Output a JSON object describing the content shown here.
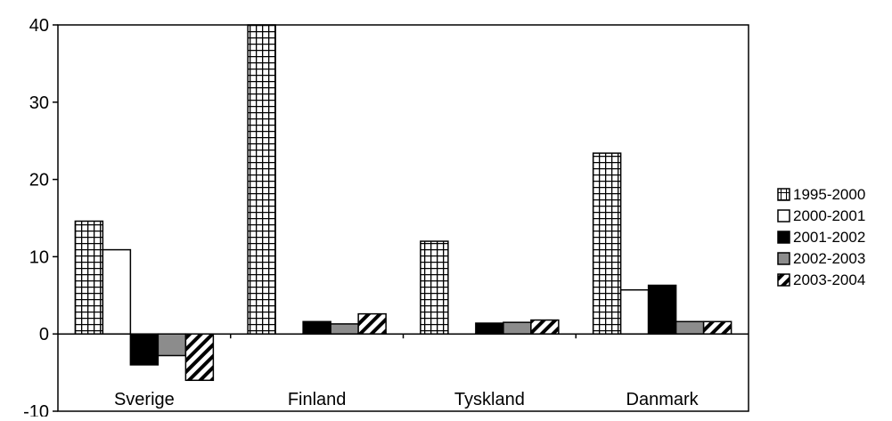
{
  "chart_data": {
    "type": "bar",
    "title": "",
    "xlabel": "",
    "ylabel": "",
    "categories": [
      "Sverige",
      "Finland",
      "Tyskland",
      "Danmark"
    ],
    "ylim": [
      -10,
      40
    ],
    "yticks": [
      -10,
      0,
      10,
      20,
      30,
      40
    ],
    "grid": false,
    "legend_position": "right",
    "series": [
      {
        "name": "1995-2000",
        "pattern": "grid",
        "values": [
          14.6,
          40,
          12,
          23.4
        ]
      },
      {
        "name": "2000-2001",
        "pattern": "white",
        "values": [
          10.9,
          0,
          0,
          5.7
        ]
      },
      {
        "name": "2001-2002",
        "pattern": "black",
        "values": [
          -4.0,
          1.6,
          1.4,
          6.3
        ]
      },
      {
        "name": "2002-2003",
        "pattern": "gray",
        "values": [
          -2.8,
          1.3,
          1.5,
          1.6
        ]
      },
      {
        "name": "2003-2004",
        "pattern": "diagonal",
        "values": [
          -6.0,
          2.6,
          1.8,
          1.6
        ]
      }
    ]
  }
}
